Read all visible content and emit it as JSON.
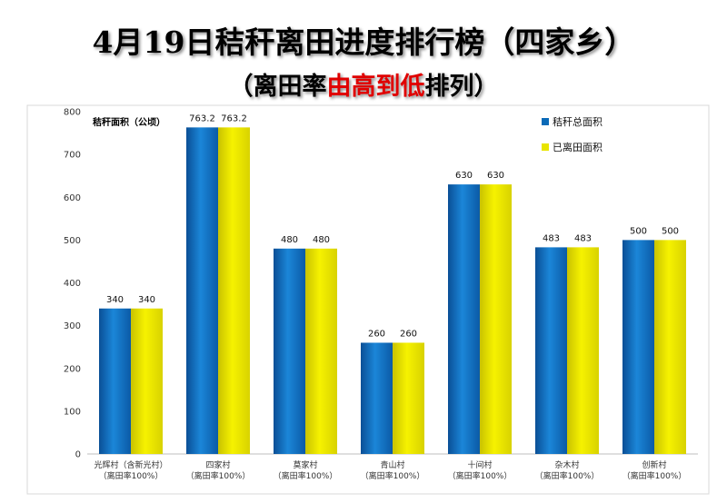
{
  "title": "4月19日秸秆离田进度排行榜（四家乡）",
  "subtitle": {
    "part1": "（离田率",
    "part2": "由高到低",
    "part3": "排列）"
  },
  "colors": {
    "series1": "#0a6ab8",
    "series2": "#e8e400",
    "title_text": "#000000",
    "subtitle_highlight": "#e00000"
  },
  "chart_data": {
    "type": "bar",
    "ylabel": "秸秆面积（公顷）",
    "ylim": [
      0,
      800
    ],
    "yticks": [
      0,
      100,
      200,
      300,
      400,
      500,
      600,
      700,
      800
    ],
    "grid": false,
    "legend_position": "top-right",
    "categories": [
      [
        "光辉村（含新光村）",
        "（离田率100%）"
      ],
      [
        "四家村",
        "（离田率100%）"
      ],
      [
        "莫家村",
        "（离田率100%）"
      ],
      [
        "青山村",
        "（离田率100%）"
      ],
      [
        "十间村",
        "（离田率100%）"
      ],
      [
        "杂木村",
        "（离田率100%）"
      ],
      [
        "创新村",
        "（离田率100%）"
      ]
    ],
    "series": [
      {
        "name": "秸秆总面积",
        "values": [
          340,
          763.2,
          480,
          260,
          630,
          483,
          500
        ]
      },
      {
        "name": "已离田面积",
        "values": [
          340,
          763.2,
          480,
          260,
          630,
          483,
          500
        ]
      }
    ]
  }
}
